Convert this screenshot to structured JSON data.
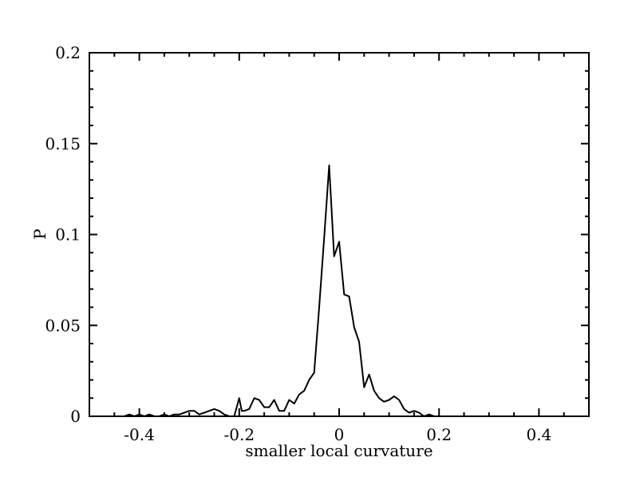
{
  "chart_data": {
    "type": "line",
    "title": "",
    "xlabel": "smaller local curvature",
    "ylabel": "P",
    "xlim": [
      -0.5,
      0.5
    ],
    "ylim": [
      0,
      0.2
    ],
    "x_ticks": [
      -0.4,
      -0.2,
      0,
      0.2,
      0.4
    ],
    "x_tick_labels": [
      "-0.4",
      "-0.2",
      "0",
      "0.2",
      "0.4"
    ],
    "y_ticks": [
      0,
      0.05,
      0.1,
      0.15,
      0.2
    ],
    "y_tick_labels": [
      "0",
      "0.05",
      "0.1",
      "0.15",
      "0.2"
    ],
    "grid": false,
    "legend": "none",
    "series": [
      {
        "color": "#000000",
        "x": [
          -0.43,
          -0.42,
          -0.41,
          -0.4,
          -0.39,
          -0.38,
          -0.37,
          -0.36,
          -0.35,
          -0.34,
          -0.33,
          -0.32,
          -0.31,
          -0.3,
          -0.29,
          -0.28,
          -0.27,
          -0.26,
          -0.25,
          -0.24,
          -0.23,
          -0.22,
          -0.21,
          -0.2,
          -0.195,
          -0.19,
          -0.18,
          -0.17,
          -0.16,
          -0.15,
          -0.14,
          -0.13,
          -0.12,
          -0.11,
          -0.1,
          -0.09,
          -0.08,
          -0.07,
          -0.06,
          -0.05,
          -0.04,
          -0.03,
          -0.02,
          -0.01,
          0.0,
          0.01,
          0.02,
          0.03,
          0.04,
          0.05,
          0.06,
          0.07,
          0.08,
          0.09,
          0.1,
          0.11,
          0.12,
          0.13,
          0.14,
          0.15,
          0.16,
          0.17,
          0.18,
          0.19
        ],
        "y": [
          0,
          0.001,
          0,
          0.001,
          0,
          0.001,
          0,
          0,
          0.001,
          0,
          0.001,
          0.001,
          0.002,
          0.003,
          0.003,
          0.001,
          0.002,
          0.003,
          0.004,
          0.003,
          0.001,
          0,
          0,
          0.01,
          0.003,
          0.003,
          0.004,
          0.01,
          0.009,
          0.005,
          0.005,
          0.009,
          0.003,
          0.003,
          0.009,
          0.007,
          0.012,
          0.014,
          0.02,
          0.024,
          0.06,
          0.098,
          0.138,
          0.088,
          0.096,
          0.067,
          0.066,
          0.049,
          0.041,
          0.016,
          0.023,
          0.014,
          0.01,
          0.008,
          0.009,
          0.011,
          0.009,
          0.004,
          0.002,
          0.003,
          0.002,
          0,
          0.001,
          0
        ]
      }
    ]
  }
}
